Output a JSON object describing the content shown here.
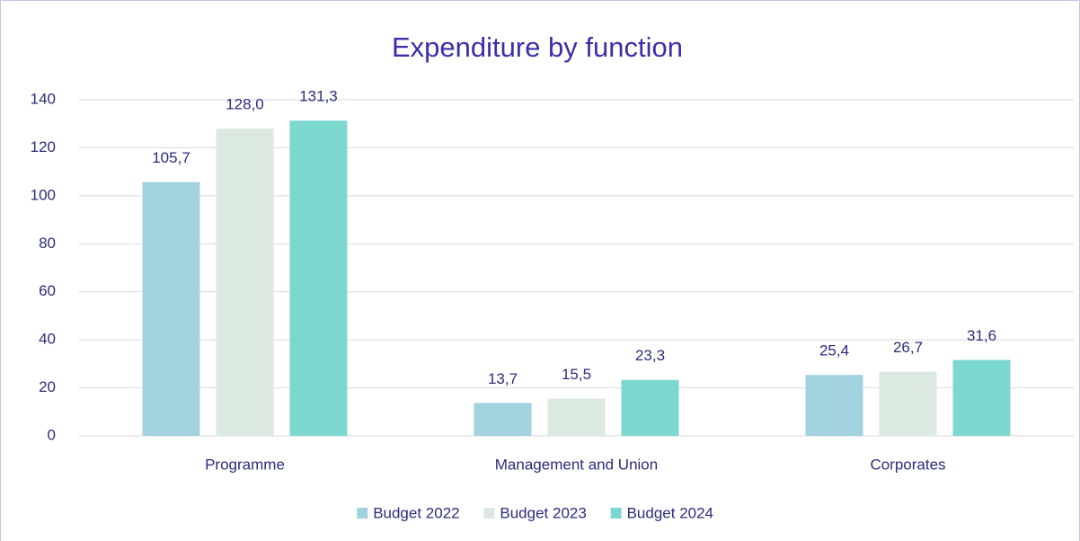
{
  "chart_data": {
    "type": "bar",
    "title": "Expenditure by function",
    "categories": [
      "Programme",
      "Management and Union",
      "Corporates"
    ],
    "series": [
      {
        "name": "Budget 2022",
        "color": "#a3d2df",
        "values": [
          105.7,
          13.7,
          25.4
        ],
        "value_labels": [
          "105,7",
          "13,7",
          "25,4"
        ]
      },
      {
        "name": "Budget 2023",
        "color": "#dce9e0",
        "values": [
          128.0,
          15.5,
          26.7
        ],
        "value_labels": [
          "128,0",
          "15,5",
          "26,7"
        ]
      },
      {
        "name": "Budget 2024",
        "color": "#7cd7cf",
        "values": [
          131.3,
          23.3,
          31.6
        ],
        "value_labels": [
          "131,3",
          "23,3",
          "31,6"
        ]
      }
    ],
    "ylim": [
      0,
      140
    ],
    "yticks": [
      0,
      20,
      40,
      60,
      80,
      100,
      120,
      140
    ],
    "grid": true,
    "legend": "bottom"
  }
}
